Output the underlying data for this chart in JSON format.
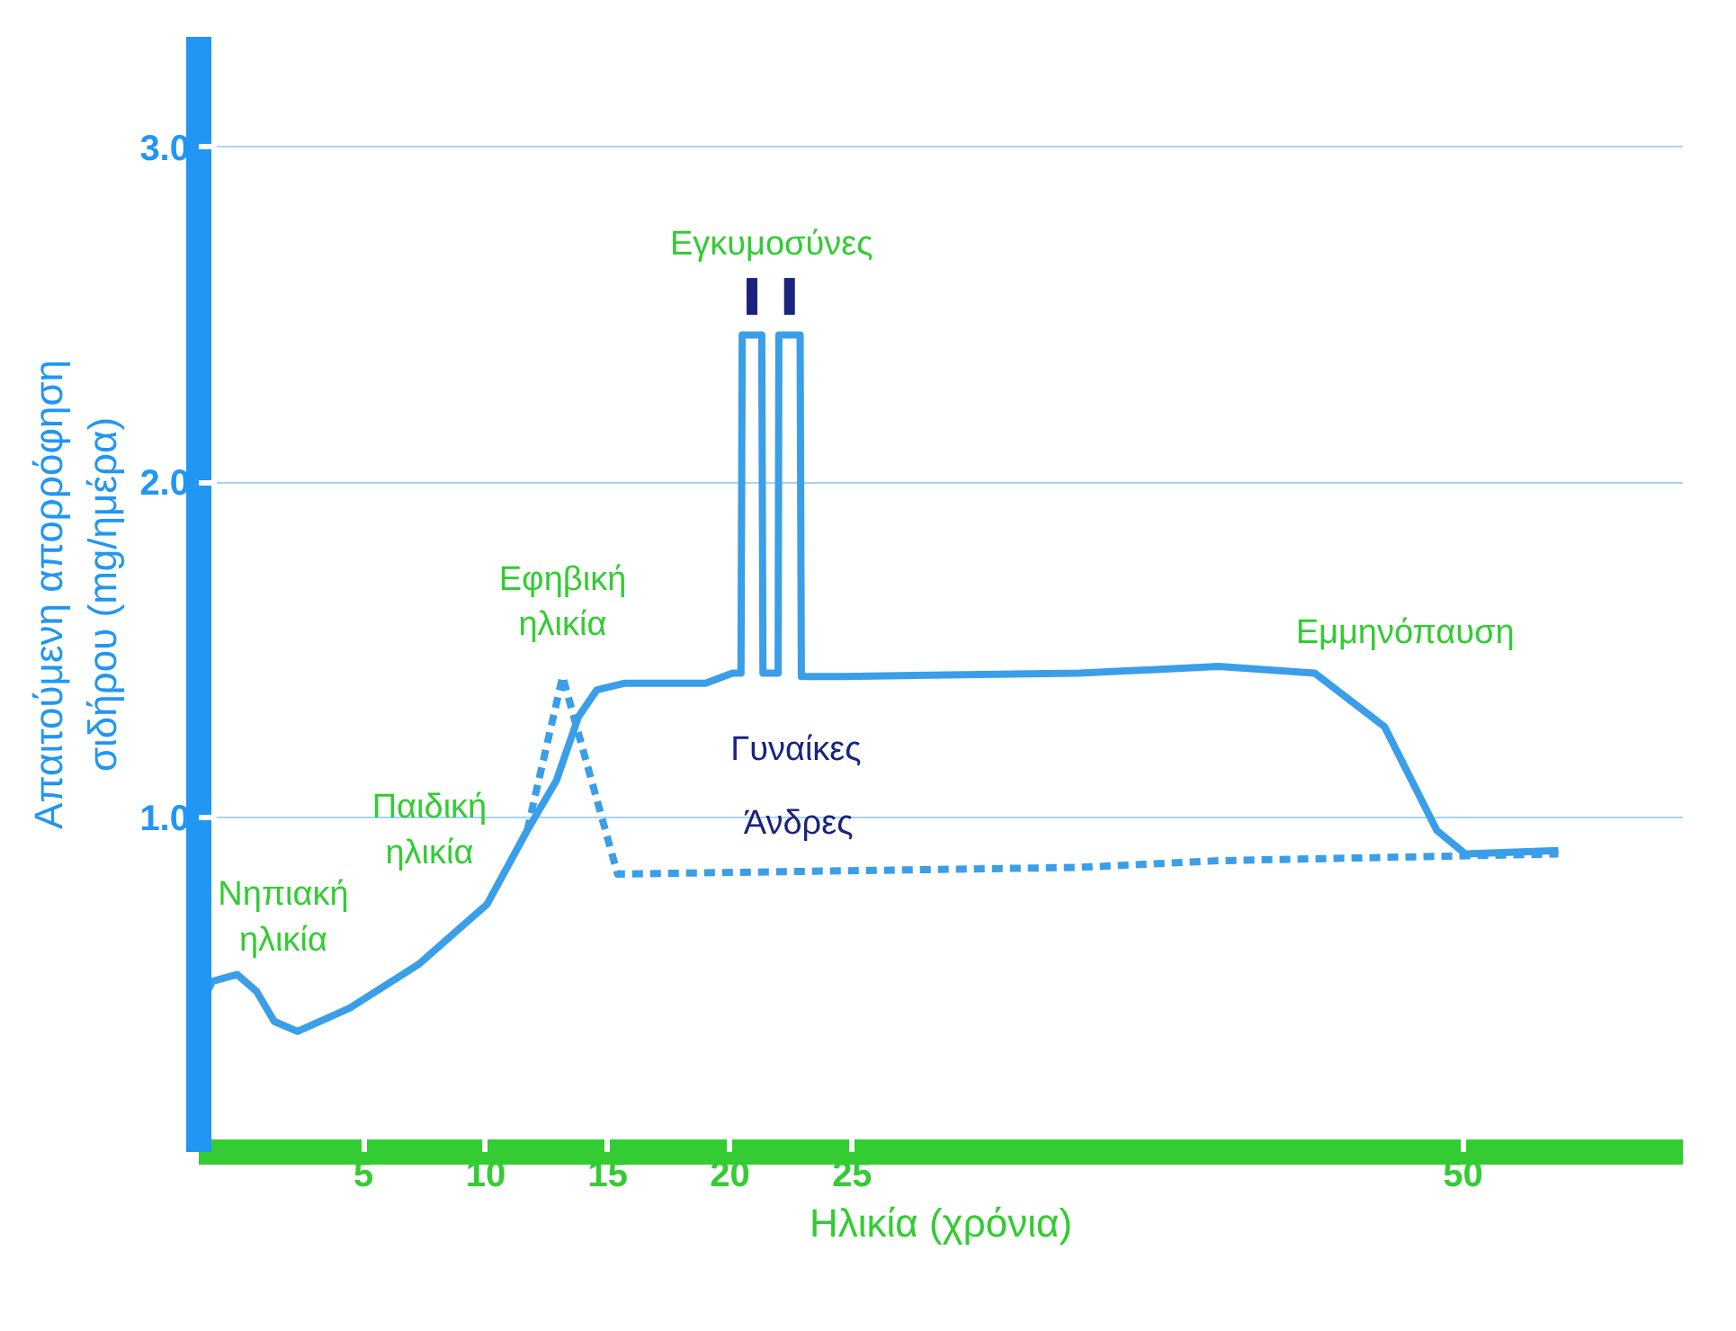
{
  "chart_data": {
    "type": "line",
    "xlabel": "Ηλικία (χρόνια)",
    "ylabel": "Απαιτούμενη απορρόφηση\nσιδήρου (mg/ημέρα)",
    "xlim": [
      -1.74,
      59
    ],
    "xticks": [
      5,
      10,
      15,
      20,
      25,
      50
    ],
    "ylim": [
      0,
      3.33
    ],
    "yticks": [
      {
        "value": 1,
        "label": "1.0"
      },
      {
        "value": 2,
        "label": "2.0"
      },
      {
        "value": 3,
        "label": "3.0"
      }
    ],
    "grid": "y",
    "marker": "none",
    "series": [
      {
        "name": "Γυναίκες",
        "color": "#3a9ee8",
        "line_style": "solid",
        "x": [
          -1.74,
          -1.18,
          -0.17,
          0.62,
          1.35,
          2.3,
          4.44,
          7.25,
          10.06,
          11.7,
          12.9,
          13.8,
          14.55,
          15.7,
          19.0,
          20.1,
          20.45,
          20.5,
          21.3,
          21.35,
          21.97,
          22.0,
          22.87,
          22.92,
          24.66,
          34.29,
          40.0,
          43.93,
          46.79,
          48.93,
          50.1,
          53.9
        ],
        "values": [
          0.43,
          0.51,
          0.53,
          0.48,
          0.39,
          0.36,
          0.43,
          0.56,
          0.74,
          0.96,
          1.11,
          1.3,
          1.38,
          1.4,
          1.4,
          1.43,
          1.43,
          2.44,
          2.44,
          1.43,
          1.43,
          2.44,
          2.44,
          1.42,
          1.42,
          1.43,
          1.45,
          1.43,
          1.27,
          0.96,
          0.89,
          0.9
        ]
      },
      {
        "name": "Άνδρες",
        "color": "#3a9ee8",
        "line_style": "dashed",
        "x": [
          11.7,
          13.15,
          15.4,
          34.29,
          40.0,
          53.9
        ],
        "values": [
          0.96,
          1.42,
          0.83,
          0.85,
          0.87,
          0.89
        ]
      }
    ],
    "annotations": [
      "Νηπιακή\nηλικία",
      "Παιδική\nηλικία",
      "Εφηβική\nηλικία",
      "Εγκυμοσύνες",
      "Εμμηνόπαυση"
    ]
  }
}
